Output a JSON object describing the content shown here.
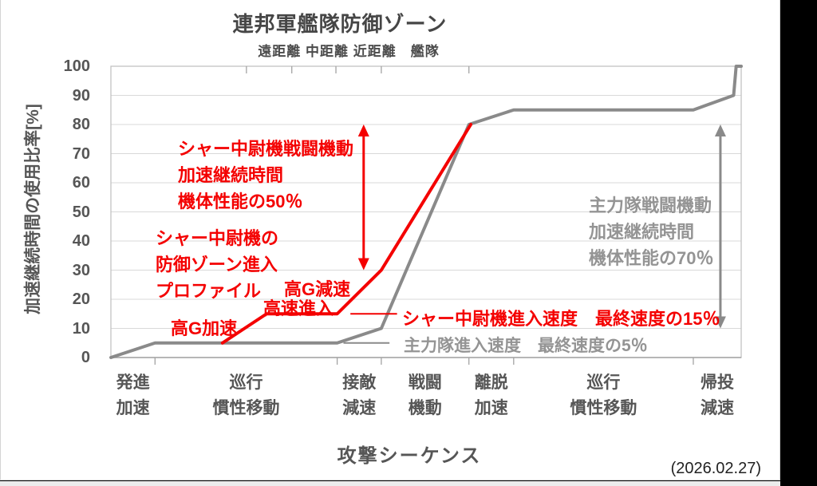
{
  "window": {
    "date_note": "(2026.02.27)"
  },
  "chart_data": {
    "type": "line",
    "title": "連邦軍艦隊防御ゾーン",
    "zone_header": "遠距離 中距離 近距離　艦隊",
    "ylabel": "加速継続時間の使用比率[%]",
    "xlabel": "攻撃シーケンス",
    "ylim": [
      0,
      100
    ],
    "yticks": [
      0,
      10,
      20,
      30,
      40,
      50,
      60,
      70,
      80,
      90,
      100
    ],
    "grid": "horizontal",
    "colors": {
      "main_force": "#8a8a8a",
      "char": "#f40000",
      "grid": "#d9d9d9",
      "border": "#c2c2c2",
      "axis": "#a3a3a3"
    },
    "categories": [
      {
        "top": "発進",
        "bottom": "加速",
        "center": 0.035
      },
      {
        "top": "巡行",
        "bottom": "慣性移動",
        "center": 0.2145
      },
      {
        "top": "接敵",
        "bottom": "減速",
        "center": 0.394
      },
      {
        "top": "戦闘",
        "bottom": "機動",
        "center": 0.4985
      },
      {
        "top": "離脱",
        "bottom": "加速",
        "center": 0.6035
      },
      {
        "top": "巡行",
        "bottom": "慣性移動",
        "center": 0.7815
      },
      {
        "top": "帰投",
        "bottom": "減速",
        "center": 0.962
      }
    ],
    "bottom_ticks": [
      0.07,
      0.359,
      0.429,
      0.568,
      0.639,
      0.924
    ],
    "top_ticks": [
      0.215,
      0.287,
      0.357,
      0.429,
      0.568
    ],
    "series": [
      {
        "name": "主力隊",
        "color_key": "main_force",
        "width": 4,
        "points": [
          [
            0,
            0
          ],
          [
            0.07,
            5
          ],
          [
            0.359,
            5
          ],
          [
            0.429,
            10
          ],
          [
            0.568,
            80
          ],
          [
            0.639,
            85
          ],
          [
            0.924,
            85
          ],
          [
            0.988,
            90
          ],
          [
            0.992,
            100
          ],
          [
            1,
            100
          ]
        ]
      },
      {
        "name": "シャー中尉機",
        "color_key": "char",
        "width": 4,
        "points": [
          [
            0.177,
            5
          ],
          [
            0.247,
            15
          ],
          [
            0.359,
            15
          ],
          [
            0.429,
            30
          ],
          [
            0.571,
            80
          ]
        ]
      }
    ],
    "arrows": [
      {
        "color_key": "char",
        "x": 0.401,
        "from_pct": 80,
        "to_pct": 30
      },
      {
        "color_key": "main_force",
        "x": 0.967,
        "from_pct": 80,
        "to_pct": 10
      }
    ],
    "legend_dashes": [
      {
        "color_key": "char",
        "x1": 0.38,
        "x2": 0.454,
        "pct": 15
      },
      {
        "color_key": "main_force",
        "x1": 0.369,
        "x2": 0.442,
        "pct": 5
      }
    ]
  },
  "annotations": {
    "char_maneuver": [
      "シャー中尉機戦闘機動",
      "加速継続時間",
      "機体性能の50％"
    ],
    "char_profile": [
      "シャー中尉機の",
      "防御ゾーン進入",
      "プロファイル"
    ],
    "high_g_accel": "高G加速",
    "high_speed_entry": "高速進入",
    "high_g_decel": "高G減速",
    "char_entry_speed": "シャー中尉機進入速度　最終速度の15％",
    "main_entry_speed": "主力隊進入速度　最終速度の5％",
    "main_maneuver": [
      "主力隊戦闘機動",
      "加速継続時間",
      "機体性能の70％"
    ]
  }
}
